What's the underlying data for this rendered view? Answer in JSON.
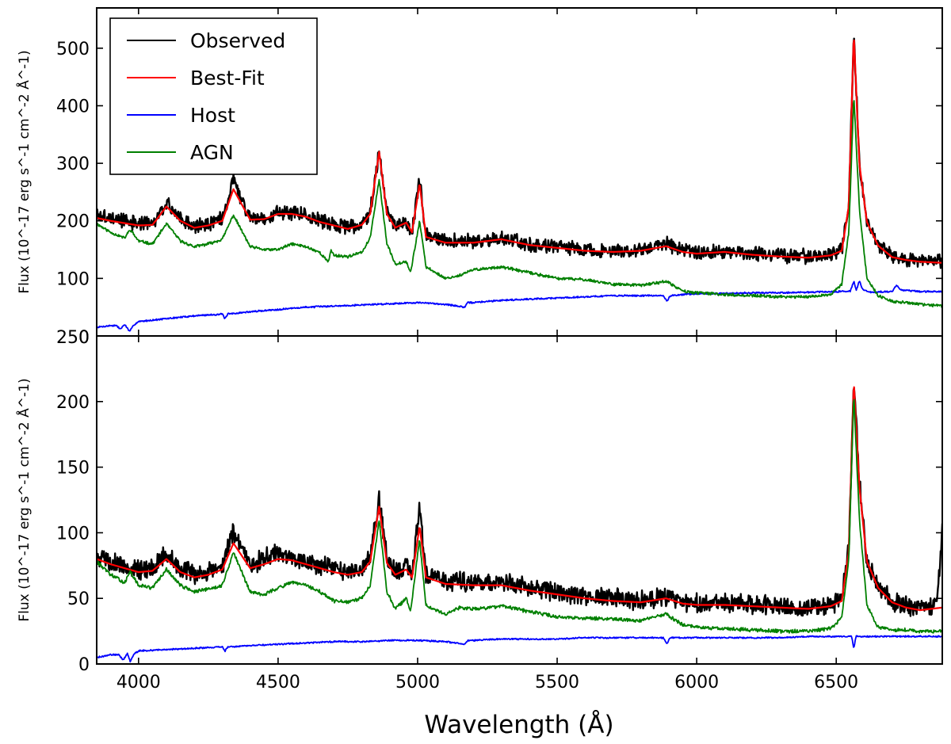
{
  "chart_data": [
    {
      "type": "line",
      "panel": "top",
      "xlabel": "",
      "ylabel": "Flux (10^-17 erg s^-1 cm^-2 Å^-1)",
      "xlim": [
        3850,
        6880
      ],
      "ylim": [
        0,
        570
      ],
      "yticks": [
        100,
        200,
        300,
        400,
        500
      ],
      "extra_tick_labels": [
        "0",
        "250"
      ],
      "legend": {
        "placement": "top-left",
        "entries": [
          {
            "label": "Observed",
            "color": "#000000"
          },
          {
            "label": "Best-Fit",
            "color": "#ff0000"
          },
          {
            "label": "Host",
            "color": "#0000ff"
          },
          {
            "label": "AGN",
            "color": "#008000"
          }
        ]
      },
      "series": [
        {
          "name": "Observed",
          "color": "#000000",
          "stroke": 2.4,
          "noise": 11,
          "seed": 3,
          "x": [
            3850,
            3900,
            3950,
            4000,
            4050,
            4100,
            4150,
            4200,
            4250,
            4300,
            4340,
            4400,
            4450,
            4500,
            4550,
            4600,
            4650,
            4700,
            4750,
            4800,
            4830,
            4862,
            4890,
            4920,
            4959,
            4980,
            5007,
            5030,
            5100,
            5200,
            5300,
            5400,
            5500,
            5600,
            5700,
            5800,
            5890,
            5950,
            6000,
            6100,
            6200,
            6300,
            6400,
            6480,
            6520,
            6545,
            6563,
            6583,
            6610,
            6650,
            6700,
            6750,
            6800,
            6880
          ],
          "y": [
            210,
            205,
            200,
            195,
            195,
            230,
            205,
            190,
            195,
            205,
            270,
            205,
            205,
            215,
            215,
            210,
            200,
            195,
            188,
            195,
            215,
            322,
            215,
            190,
            200,
            180,
            270,
            175,
            165,
            165,
            170,
            160,
            155,
            150,
            148,
            150,
            160,
            148,
            145,
            148,
            143,
            140,
            138,
            142,
            150,
            230,
            530,
            300,
            200,
            160,
            140,
            135,
            132,
            130
          ]
        },
        {
          "name": "Best-Fit",
          "color": "#ff0000",
          "stroke": 2.2,
          "noise": 0,
          "seed": 0,
          "x": [
            3850,
            3900,
            3950,
            4000,
            4050,
            4100,
            4150,
            4200,
            4250,
            4300,
            4340,
            4400,
            4450,
            4500,
            4550,
            4600,
            4650,
            4700,
            4750,
            4800,
            4830,
            4862,
            4890,
            4920,
            4959,
            4980,
            5007,
            5030,
            5100,
            5200,
            5300,
            5400,
            5500,
            5600,
            5700,
            5800,
            5890,
            5950,
            6000,
            6100,
            6200,
            6300,
            6400,
            6480,
            6520,
            6545,
            6563,
            6583,
            6610,
            6650,
            6700,
            6750,
            6800,
            6880
          ],
          "y": [
            205,
            200,
            196,
            192,
            193,
            225,
            200,
            188,
            192,
            200,
            255,
            202,
            203,
            212,
            212,
            207,
            198,
            192,
            186,
            193,
            212,
            320,
            212,
            188,
            197,
            180,
            265,
            172,
            162,
            162,
            168,
            158,
            153,
            148,
            146,
            148,
            156,
            146,
            143,
            146,
            141,
            138,
            136,
            140,
            148,
            226,
            525,
            298,
            198,
            157,
            137,
            132,
            129,
            127
          ]
        },
        {
          "name": "Host",
          "color": "#0000ff",
          "stroke": 1.8,
          "noise": 1.2,
          "seed": 7,
          "x": [
            3850,
            3900,
            3920,
            3935,
            3950,
            3968,
            3985,
            4000,
            4100,
            4200,
            4300,
            4310,
            4320,
            4400,
            4500,
            4600,
            4700,
            4800,
            4900,
            5000,
            5100,
            5170,
            5180,
            5200,
            5300,
            5400,
            5500,
            5600,
            5700,
            5800,
            5880,
            5893,
            5905,
            5950,
            6000,
            6100,
            6200,
            6300,
            6400,
            6500,
            6550,
            6563,
            6572,
            6583,
            6595,
            6620,
            6700,
            6716,
            6731,
            6800,
            6880
          ],
          "y": [
            15,
            18,
            18,
            12,
            20,
            8,
            20,
            25,
            30,
            35,
            38,
            30,
            38,
            42,
            46,
            50,
            52,
            54,
            56,
            58,
            55,
            50,
            58,
            58,
            62,
            64,
            66,
            68,
            70,
            70,
            70,
            60,
            70,
            72,
            73,
            74,
            75,
            75,
            76,
            77,
            78,
            95,
            80,
            96,
            80,
            76,
            77,
            88,
            80,
            77,
            77
          ]
        },
        {
          "name": "AGN",
          "color": "#008000",
          "stroke": 1.8,
          "noise": 2.2,
          "seed": 11,
          "x": [
            3850,
            3900,
            3950,
            3970,
            4000,
            4050,
            4100,
            4150,
            4200,
            4250,
            4300,
            4340,
            4400,
            4450,
            4500,
            4550,
            4600,
            4650,
            4680,
            4690,
            4700,
            4750,
            4800,
            4830,
            4862,
            4890,
            4920,
            4959,
            4975,
            5007,
            5030,
            5100,
            5150,
            5200,
            5300,
            5400,
            5500,
            5600,
            5700,
            5800,
            5890,
            5950,
            6000,
            6100,
            6200,
            6300,
            6400,
            6480,
            6520,
            6545,
            6563,
            6583,
            6610,
            6650,
            6700,
            6750,
            6800,
            6880
          ],
          "y": [
            195,
            180,
            170,
            185,
            165,
            160,
            195,
            165,
            155,
            160,
            168,
            210,
            155,
            150,
            150,
            160,
            155,
            145,
            128,
            150,
            140,
            138,
            145,
            170,
            272,
            160,
            125,
            130,
            110,
            200,
            120,
            100,
            105,
            115,
            120,
            110,
            100,
            98,
            90,
            88,
            95,
            78,
            75,
            72,
            70,
            68,
            68,
            72,
            90,
            180,
            420,
            220,
            100,
            70,
            60,
            58,
            55,
            52
          ]
        }
      ]
    },
    {
      "type": "line",
      "panel": "bottom",
      "xlabel": "Wavelength (Å)",
      "ylabel": "Flux (10^-17 erg s^-1 cm^-2 Å^-1)",
      "xlim": [
        3850,
        6880
      ],
      "ylim": [
        0,
        250
      ],
      "yticks": [
        0,
        50,
        100,
        150,
        200
      ],
      "xticks": [
        4000,
        4500,
        5000,
        5500,
        6000,
        6500
      ],
      "series": [
        {
          "name": "Observed",
          "color": "#000000",
          "stroke": 2.4,
          "noise": 6.5,
          "seed": 5,
          "x": [
            3850,
            3900,
            3950,
            4000,
            4050,
            4100,
            4150,
            4200,
            4250,
            4300,
            4340,
            4400,
            4450,
            4500,
            4550,
            4600,
            4650,
            4700,
            4750,
            4800,
            4830,
            4862,
            4890,
            4920,
            4959,
            4980,
            5007,
            5030,
            5100,
            5200,
            5300,
            5400,
            5500,
            5600,
            5700,
            5800,
            5890,
            5950,
            6000,
            6100,
            6200,
            6300,
            6400,
            6480,
            6520,
            6545,
            6563,
            6583,
            6610,
            6650,
            6700,
            6750,
            6800,
            6860,
            6880
          ],
          "y": [
            82,
            78,
            75,
            72,
            72,
            85,
            72,
            68,
            70,
            74,
            100,
            75,
            80,
            85,
            82,
            78,
            75,
            72,
            70,
            72,
            82,
            125,
            80,
            70,
            75,
            68,
            120,
            68,
            63,
            62,
            62,
            58,
            55,
            52,
            50,
            48,
            52,
            47,
            46,
            46,
            45,
            44,
            43,
            45,
            50,
            90,
            218,
            140,
            80,
            60,
            48,
            44,
            42,
            45,
            102
          ]
        },
        {
          "name": "Best-Fit",
          "color": "#ff0000",
          "stroke": 2.2,
          "noise": 0,
          "seed": 0,
          "x": [
            3850,
            3900,
            3950,
            4000,
            4050,
            4100,
            4150,
            4200,
            4250,
            4300,
            4340,
            4400,
            4450,
            4500,
            4550,
            4600,
            4650,
            4700,
            4750,
            4800,
            4830,
            4862,
            4890,
            4920,
            4959,
            4980,
            5007,
            5030,
            5100,
            5200,
            5300,
            5400,
            5500,
            5600,
            5700,
            5800,
            5890,
            5950,
            6000,
            6100,
            6200,
            6300,
            6400,
            6480,
            6520,
            6545,
            6563,
            6583,
            6610,
            6650,
            6700,
            6750,
            6800,
            6880
          ],
          "y": [
            80,
            76,
            73,
            70,
            71,
            80,
            70,
            66,
            68,
            72,
            92,
            73,
            76,
            80,
            79,
            76,
            73,
            70,
            68,
            70,
            78,
            120,
            77,
            68,
            72,
            66,
            105,
            66,
            61,
            60,
            60,
            56,
            53,
            50,
            48,
            47,
            50,
            46,
            45,
            45,
            44,
            43,
            42,
            44,
            48,
            86,
            215,
            135,
            78,
            58,
            47,
            43,
            41,
            43
          ]
        },
        {
          "name": "Host",
          "color": "#0000ff",
          "stroke": 1.8,
          "noise": 0.5,
          "seed": 9,
          "x": [
            3850,
            3900,
            3930,
            3945,
            3960,
            3970,
            3985,
            4000,
            4100,
            4200,
            4300,
            4310,
            4320,
            4400,
            4500,
            4600,
            4700,
            4800,
            4900,
            5000,
            5100,
            5170,
            5180,
            5200,
            5300,
            5400,
            5500,
            5600,
            5700,
            5800,
            5880,
            5893,
            5905,
            5950,
            6000,
            6100,
            6200,
            6300,
            6400,
            6500,
            6555,
            6563,
            6571,
            6600,
            6700,
            6800,
            6880
          ],
          "y": [
            5,
            7,
            7,
            3,
            8,
            2,
            8,
            10,
            11,
            12,
            13,
            10,
            13,
            14,
            15,
            16,
            17,
            17,
            18,
            18,
            17,
            15,
            18,
            18,
            19,
            19,
            19,
            20,
            20,
            20,
            20,
            15,
            20,
            20,
            20,
            20,
            20,
            20,
            21,
            21,
            21,
            12,
            21,
            21,
            21,
            21,
            21
          ]
        },
        {
          "name": "AGN",
          "color": "#008000",
          "stroke": 1.8,
          "noise": 1.2,
          "seed": 13,
          "x": [
            3850,
            3900,
            3950,
            3970,
            4000,
            4050,
            4100,
            4150,
            4200,
            4250,
            4300,
            4340,
            4400,
            4450,
            4500,
            4550,
            4600,
            4650,
            4700,
            4750,
            4800,
            4830,
            4862,
            4890,
            4920,
            4959,
            4975,
            5007,
            5030,
            5100,
            5150,
            5200,
            5300,
            5400,
            5500,
            5600,
            5700,
            5800,
            5890,
            5950,
            6000,
            6100,
            6200,
            6300,
            6400,
            6480,
            6520,
            6545,
            6563,
            6583,
            6610,
            6650,
            6700,
            6750,
            6800,
            6880
          ],
          "y": [
            78,
            68,
            62,
            70,
            60,
            58,
            72,
            60,
            55,
            57,
            60,
            85,
            55,
            53,
            58,
            62,
            60,
            55,
            48,
            47,
            50,
            60,
            110,
            55,
            42,
            50,
            40,
            95,
            45,
            38,
            43,
            42,
            44,
            40,
            36,
            35,
            34,
            33,
            38,
            30,
            28,
            27,
            26,
            25,
            25,
            27,
            35,
            80,
            205,
            110,
            45,
            28,
            26,
            26,
            25,
            25
          ]
        }
      ]
    }
  ]
}
